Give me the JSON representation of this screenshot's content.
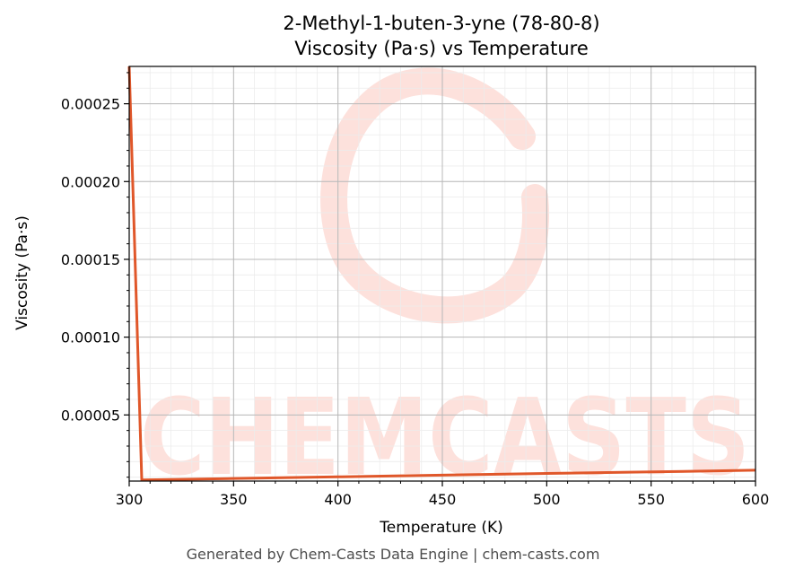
{
  "chart_data": {
    "type": "line",
    "title_line1": "2-Methyl-1-buten-3-yne (78-80-8)",
    "title_line2": "Viscosity (Pa·s) vs Temperature",
    "xlabel": "Temperature (K)",
    "ylabel": "Viscosity (Pa·s)",
    "xlim": [
      300,
      600
    ],
    "ylim": [
      7.5e-06,
      0.000274
    ],
    "x_ticks": [
      300,
      350,
      400,
      450,
      500,
      550,
      600
    ],
    "y_ticks": [
      5e-05,
      0.0001,
      0.00015,
      0.0002,
      0.00025
    ],
    "y_tick_labels": [
      "0.00005",
      "0.00010",
      "0.00015",
      "0.00020",
      "0.00025"
    ],
    "grid": true,
    "line_color": "#e0572a",
    "series": [
      {
        "x": [
          300,
          306,
          350,
          400,
          450,
          500,
          550,
          600
        ],
        "y": [
          0.000274,
          8.2e-06,
          9.2e-06,
          1.02e-05,
          1.13e-05,
          1.24e-05,
          1.34e-05,
          1.45e-05
        ]
      }
    ]
  },
  "watermark": {
    "text": "CHEMCASTS",
    "color": "#fde1dc"
  },
  "footer": {
    "text": "Generated by Chem-Casts Data Engine | chem-casts.com"
  }
}
